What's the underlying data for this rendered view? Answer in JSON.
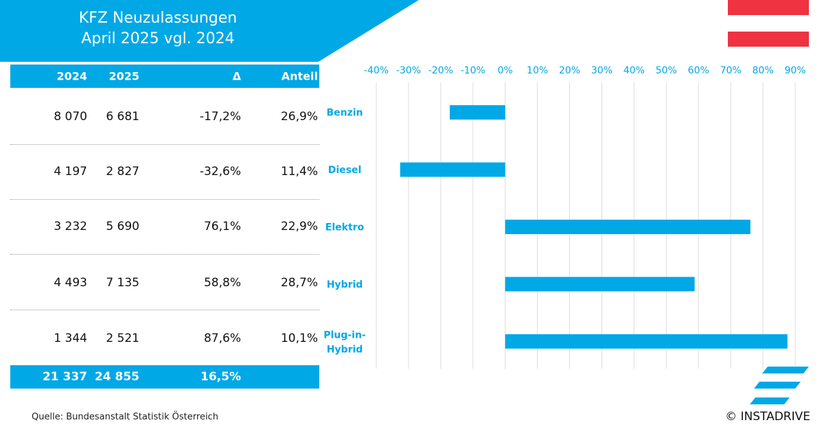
{
  "header": {
    "title_line1": "KFZ Neuzulassungen",
    "title_line2": "April 2025 vgl. 2024"
  },
  "table": {
    "headers": [
      "2024",
      "2025",
      "Δ",
      "Anteil"
    ],
    "rows": [
      [
        "8 070",
        "6 681",
        "-17,2%",
        "26,9%"
      ],
      [
        "4 197",
        "2 827",
        "-32,6%",
        "11,4%"
      ],
      [
        "3 232",
        "5 690",
        "76,1%",
        "22,9%"
      ],
      [
        "4 493",
        "7 135",
        "58,8%",
        "28,7%"
      ],
      [
        "1 344",
        "2 521",
        "87,6%",
        "10,1%"
      ]
    ],
    "total": [
      "21 337",
      "24 855",
      "16,5%"
    ]
  },
  "chart_data": {
    "type": "bar",
    "orientation": "horizontal",
    "categories": [
      "Benzin",
      "Diesel",
      "Elektro",
      "Hybrid",
      "Plug-in-Hybrid"
    ],
    "values": [
      -17.2,
      -32.6,
      76.1,
      58.8,
      87.6
    ],
    "xlim": [
      -40,
      90
    ],
    "x_ticks": [
      "-40%",
      "-30%",
      "-20%",
      "-10%",
      "0%",
      "10%",
      "20%",
      "30%",
      "40%",
      "50%",
      "60%",
      "70%",
      "80%",
      "90%"
    ],
    "axis_position": "top",
    "grid": true,
    "bar_color": "#00a8e6",
    "label_color": "#00a8e6"
  },
  "footer": {
    "source": "Quelle: Bundesanstalt Statistik Österreich",
    "copyright": "© INSTADRIVE"
  },
  "colors": {
    "accent": "#00a8e6",
    "flag_red": "#ef3340"
  }
}
